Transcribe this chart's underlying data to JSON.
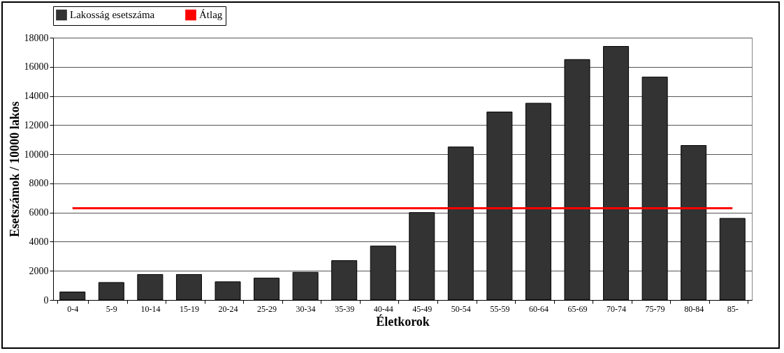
{
  "chart_data": {
    "type": "bar",
    "xlabel": "Életkorok",
    "ylabel": "Esetszámok / 10000 lakos",
    "categories": [
      "0-4",
      "5-9",
      "10-14",
      "15-19",
      "20-24",
      "25-29",
      "30-34",
      "35-39",
      "40-44",
      "45-49",
      "50-54",
      "55-59",
      "60-64",
      "65-69",
      "70-74",
      "75-79",
      "80-84",
      "85-"
    ],
    "series": [
      {
        "name": "Lakosság esetszáma",
        "color": "#333333",
        "values": [
          550,
          1200,
          1750,
          1750,
          1250,
          1500,
          1900,
          2700,
          3700,
          6000,
          10500,
          12900,
          13500,
          16500,
          17400,
          15300,
          10600,
          5600
        ]
      },
      {
        "name": "Átlag",
        "type": "line",
        "color": "#ff0000",
        "values": [
          6300,
          6300,
          6300,
          6300,
          6300,
          6300,
          6300,
          6300,
          6300,
          6300,
          6300,
          6300,
          6300,
          6300,
          6300,
          6300,
          6300,
          6300
        ]
      }
    ],
    "ylim": [
      0,
      18000
    ],
    "yticks": [
      0,
      2000,
      4000,
      6000,
      8000,
      10000,
      12000,
      14000,
      16000,
      18000
    ],
    "grid": "y",
    "legend": "top"
  }
}
